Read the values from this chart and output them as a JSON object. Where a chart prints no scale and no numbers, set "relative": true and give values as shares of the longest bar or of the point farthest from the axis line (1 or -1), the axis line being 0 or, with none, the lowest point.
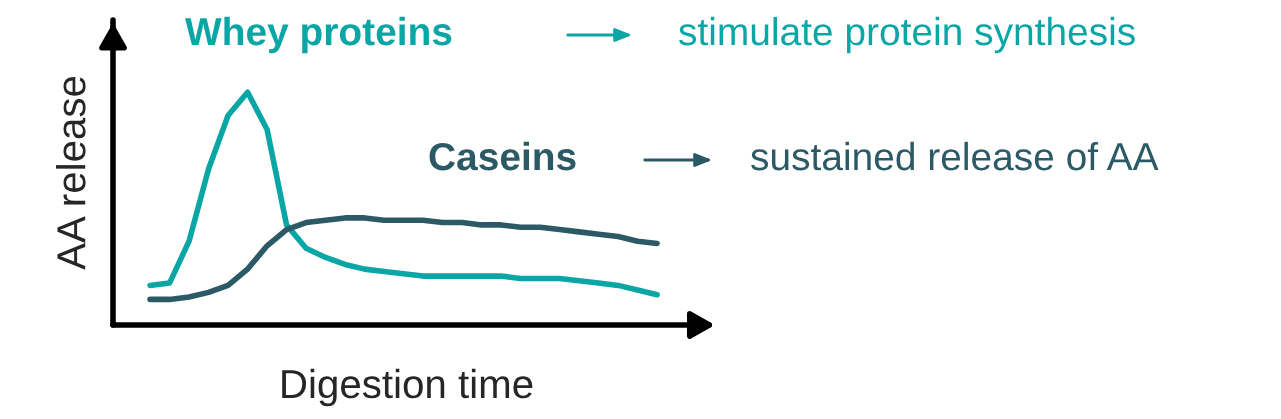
{
  "chart_data": {
    "type": "line",
    "relative": true,
    "xlabel": "Digestion time",
    "ylabel": "AA release",
    "categories": [
      null,
      null,
      null,
      null,
      null,
      null,
      null,
      null,
      null,
      null,
      null,
      null,
      null,
      null,
      null,
      null,
      null,
      null,
      null,
      null,
      null,
      null,
      null,
      null,
      null,
      null,
      null
    ],
    "series": [
      {
        "name": "Whey proteins",
        "color": "#0aa6a6",
        "values": [
          0.17,
          0.18,
          0.36,
          0.67,
          0.9,
          1.0,
          0.84,
          0.43,
          0.33,
          0.29,
          0.26,
          0.24,
          0.23,
          0.22,
          0.21,
          0.21,
          0.21,
          0.21,
          0.21,
          0.2,
          0.2,
          0.2,
          0.19,
          0.18,
          0.17,
          0.15,
          0.13
        ]
      },
      {
        "name": "Caseins",
        "color": "#2b5a66",
        "values": [
          0.11,
          0.11,
          0.12,
          0.14,
          0.17,
          0.24,
          0.34,
          0.41,
          0.44,
          0.45,
          0.46,
          0.46,
          0.45,
          0.45,
          0.45,
          0.44,
          0.44,
          0.43,
          0.43,
          0.42,
          0.42,
          0.41,
          0.4,
          0.39,
          0.38,
          0.36,
          0.35
        ]
      }
    ],
    "annotations": [
      "stimulate protein synthesis",
      "sustained release of AA"
    ],
    "grid": false,
    "legend": false,
    "marker": "none",
    "line_style": "solid"
  }
}
